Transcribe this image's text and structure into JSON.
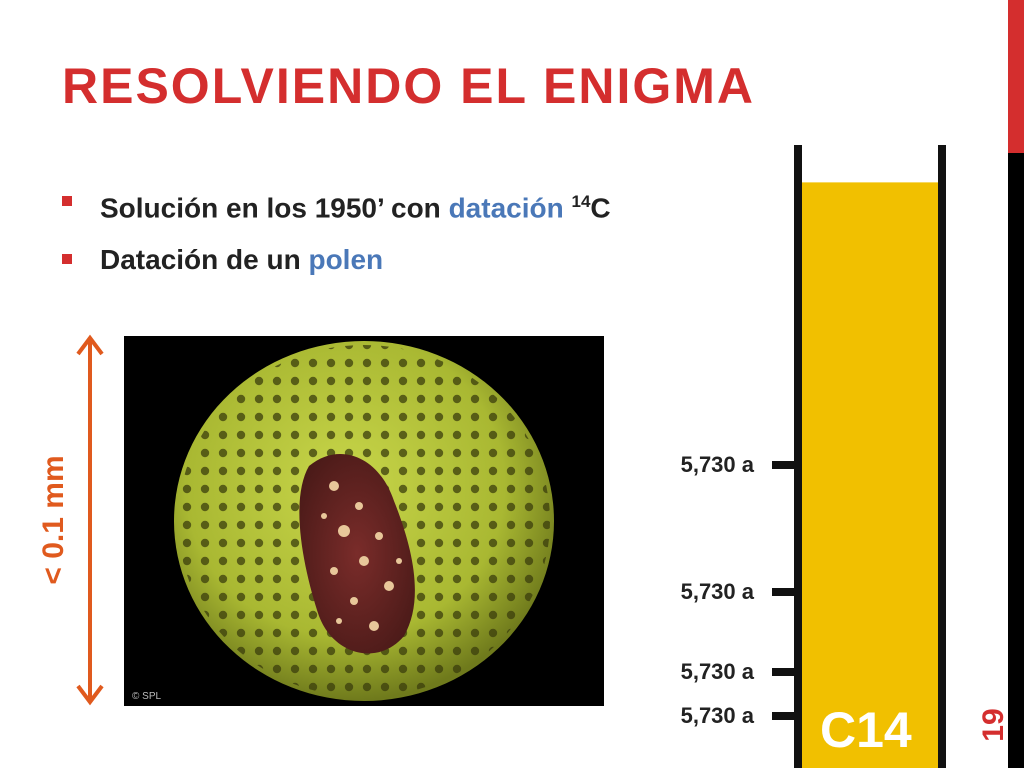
{
  "slide": {
    "title": "RESOLVIENDO EL ENIGMA",
    "page_number": "19"
  },
  "bullets": [
    {
      "pre": "Solución en los 1950’ con ",
      "highlight": "datación ",
      "sup": "14",
      "post": "C"
    },
    {
      "pre": "Datación de un ",
      "highlight": "polen"
    }
  ],
  "photo": {
    "credit": "© SPL"
  },
  "scale": {
    "label": "< 0.1 mm"
  },
  "decay_tube": {
    "label": "C14",
    "half_lives": [
      "5,730 a",
      "5,730 a",
      "5,730 a",
      "5,730 a"
    ],
    "fill_fraction": 0.94
  },
  "colors": {
    "accent": "#d42e2e",
    "highlight": "#4a78b8",
    "fill": "#f1c000",
    "scale": "#e05a1e"
  }
}
